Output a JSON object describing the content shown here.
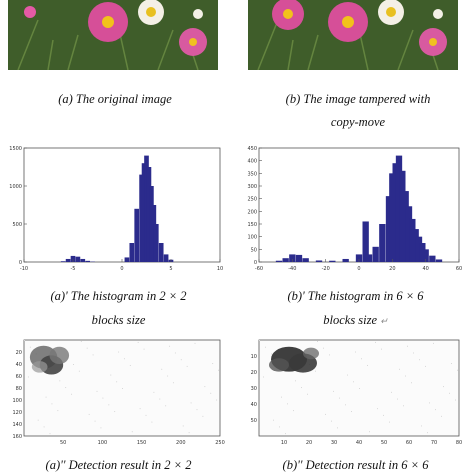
{
  "figure": {
    "captions": {
      "a": "(a) The original image",
      "b_line1": "(b) The image tampered with",
      "b_line2": "copy-move",
      "a1_line1": "(a)' The histogram in  2 × 2",
      "a1_line2": "blocks size",
      "b1_line1": "(b)' The histogram in  6 × 6",
      "b1_line2": "blocks size",
      "b1_trailer": "↵",
      "a2": "(a)'' Detection result in  2 × 2",
      "b2": "(b)'' Detection result in  6 × 6"
    }
  },
  "chart_data": [
    {
      "type": "bar",
      "title": "",
      "xlabel": "",
      "ylabel": "",
      "xlim": [
        -10,
        10
      ],
      "ylim": [
        0,
        1500
      ],
      "x_ticks": [
        "-10",
        "-5",
        "0",
        "5",
        "10"
      ],
      "y_ticks": [
        "0",
        "500",
        "1000",
        "1500"
      ],
      "color": "#2b2b8c",
      "x": [
        -6.0,
        -5.5,
        -5.0,
        -4.5,
        -4.0,
        -3.5,
        -3.0,
        0.5,
        1.0,
        1.5,
        2.0,
        2.25,
        2.5,
        2.75,
        3.0,
        3.25,
        3.5,
        4.0,
        4.5,
        5.0
      ],
      "values": [
        10,
        40,
        80,
        70,
        40,
        15,
        5,
        60,
        250,
        700,
        1150,
        1300,
        1400,
        1250,
        1000,
        750,
        500,
        250,
        100,
        30
      ]
    },
    {
      "type": "bar",
      "title": "",
      "xlabel": "",
      "ylabel": "",
      "xlim": [
        -60,
        60
      ],
      "ylim": [
        0,
        450
      ],
      "x_ticks": [
        "-60",
        "-40",
        "-20",
        "0",
        "20",
        "40",
        "60"
      ],
      "y_ticks": [
        "0",
        "50",
        "100",
        "150",
        "200",
        "250",
        "300",
        "350",
        "400",
        "450"
      ],
      "color": "#2b2b8c",
      "x": [
        -48,
        -44,
        -40,
        -36,
        -32,
        -24,
        -16,
        -8,
        0,
        4,
        6,
        10,
        14,
        18,
        20,
        22,
        24,
        26,
        28,
        30,
        32,
        34,
        36,
        38,
        40,
        44,
        48
      ],
      "values": [
        5,
        15,
        30,
        28,
        15,
        6,
        5,
        12,
        30,
        160,
        30,
        60,
        150,
        260,
        350,
        390,
        420,
        360,
        280,
        220,
        170,
        130,
        100,
        75,
        50,
        25,
        10
      ]
    },
    {
      "type": "heatmap",
      "title": "",
      "xlim": [
        0,
        250
      ],
      "ylim": [
        160,
        0
      ],
      "x_ticks": [
        "50",
        "100",
        "150",
        "200",
        "250"
      ],
      "y_ticks": [
        "20",
        "40",
        "60",
        "80",
        "100",
        "120",
        "140",
        "160"
      ]
    },
    {
      "type": "heatmap",
      "title": "",
      "xlim": [
        0,
        80
      ],
      "ylim": [
        60,
        0
      ],
      "x_ticks": [
        "10",
        "20",
        "30",
        "40",
        "50",
        "60",
        "70",
        "80"
      ],
      "y_ticks": [
        "10",
        "20",
        "30",
        "40",
        "50"
      ]
    }
  ]
}
